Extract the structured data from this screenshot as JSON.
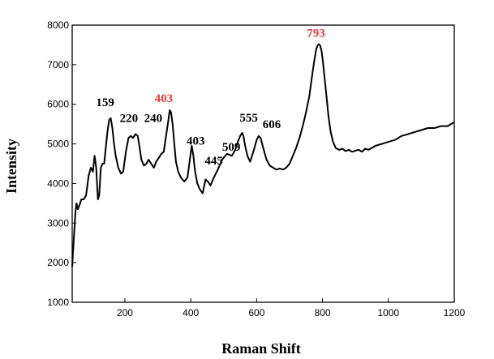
{
  "chart_data": {
    "type": "line",
    "title": "",
    "xlabel": "Raman Shift",
    "ylabel": "Intensity",
    "xlim": [
      40,
      1200
    ],
    "ylim": [
      1000,
      8000
    ],
    "x_ticks": [
      200,
      400,
      600,
      800,
      1000,
      1200
    ],
    "y_ticks": [
      1000,
      2000,
      3000,
      4000,
      5000,
      6000,
      7000,
      8000
    ],
    "grid": false,
    "legend": "none",
    "series": [
      {
        "color": "#000000",
        "x": [
          40,
          45,
          50,
          53,
          57,
          62,
          68,
          75,
          82,
          90,
          97,
          103,
          108,
          113,
          118,
          122,
          127,
          132,
          137,
          142,
          147,
          152,
          157,
          162,
          167,
          172,
          180,
          188,
          195,
          203,
          211,
          218,
          225,
          232,
          239,
          245,
          250,
          258,
          265,
          272,
          280,
          288,
          295,
          303,
          311,
          318,
          325,
          332,
          336,
          340,
          345,
          350,
          355,
          362,
          370,
          380,
          390,
          397,
          403,
          408,
          413,
          420,
          428,
          436,
          445,
          452,
          460,
          470,
          482,
          495,
          510,
          525,
          535,
          543,
          550,
          556,
          560,
          565,
          572,
          580,
          590,
          600,
          606,
          612,
          620,
          630,
          640,
          650,
          660,
          670,
          680,
          690,
          700,
          710,
          720,
          730,
          740,
          750,
          760,
          768,
          775,
          781,
          786,
          790,
          793,
          797,
          801,
          806,
          812,
          818,
          825,
          832,
          840,
          850,
          860,
          870,
          880,
          890,
          900,
          910,
          920,
          930,
          940,
          950,
          960,
          980,
          1000,
          1020,
          1040,
          1060,
          1080,
          1100,
          1120,
          1140,
          1160,
          1180,
          1200
        ],
        "values": [
          1900,
          2600,
          3300,
          3500,
          3350,
          3450,
          3600,
          3600,
          3700,
          4200,
          4400,
          4300,
          4700,
          4400,
          3600,
          3700,
          4400,
          4500,
          4500,
          4900,
          5300,
          5600,
          5650,
          5400,
          5000,
          4700,
          4400,
          4250,
          4300,
          4800,
          5150,
          5200,
          5150,
          5250,
          5200,
          4900,
          4600,
          4450,
          4500,
          4600,
          4500,
          4400,
          4550,
          4650,
          4750,
          4800,
          5200,
          5600,
          5850,
          5800,
          5500,
          5000,
          4550,
          4300,
          4150,
          4050,
          4150,
          4600,
          4950,
          4700,
          4300,
          4000,
          3850,
          3750,
          4100,
          4050,
          3950,
          4150,
          4350,
          4600,
          4750,
          4700,
          4850,
          5050,
          5200,
          5280,
          5200,
          4950,
          4700,
          4550,
          4800,
          5100,
          5200,
          5150,
          4900,
          4600,
          4450,
          4400,
          4350,
          4380,
          4350,
          4400,
          4500,
          4700,
          4900,
          5150,
          5450,
          5800,
          6200,
          6700,
          7100,
          7400,
          7500,
          7520,
          7480,
          7350,
          7100,
          6700,
          6200,
          5700,
          5300,
          5050,
          4900,
          4850,
          4880,
          4820,
          4850,
          4800,
          4830,
          4850,
          4800,
          4880,
          4850,
          4900,
          4950,
          5000,
          5050,
          5100,
          5200,
          5250,
          5300,
          5350,
          5400,
          5400,
          5450,
          5450,
          5550
        ]
      }
    ],
    "annotations": [
      {
        "text": "159",
        "x": 140,
        "y": 5950,
        "color": "#000000"
      },
      {
        "text": "220",
        "x": 212,
        "y": 5550,
        "color": "#000000"
      },
      {
        "text": "240",
        "x": 286,
        "y": 5550,
        "color": "#000000"
      },
      {
        "text": "403",
        "x": 318,
        "y": 6060,
        "color": "#e53935"
      },
      {
        "text": "403",
        "x": 415,
        "y": 4980,
        "color": "#000000"
      },
      {
        "text": "445",
        "x": 470,
        "y": 4480,
        "color": "#000000"
      },
      {
        "text": "509",
        "x": 523,
        "y": 4830,
        "color": "#000000"
      },
      {
        "text": "555",
        "x": 576,
        "y": 5560,
        "color": "#000000"
      },
      {
        "text": "606",
        "x": 646,
        "y": 5400,
        "color": "#000000"
      },
      {
        "text": "793",
        "x": 780,
        "y": 7700,
        "color": "#e53935"
      }
    ]
  }
}
